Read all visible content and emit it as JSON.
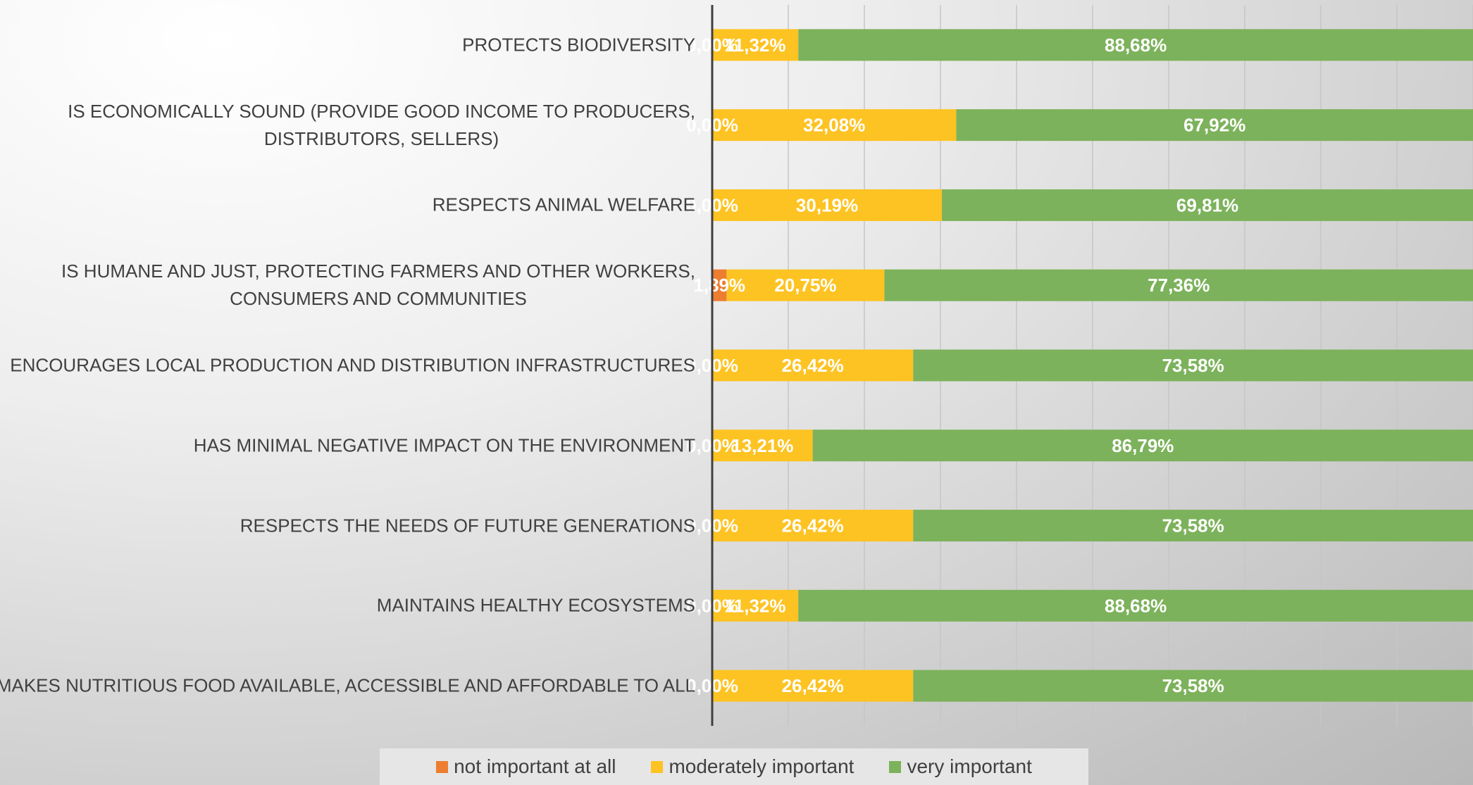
{
  "chart_data": {
    "type": "stacked_bar_horizontal",
    "categories": [
      "PROTECTS BIODIVERSITY",
      "IS ECONOMICALLY SOUND (PROVIDE GOOD INCOME TO PRODUCERS, DISTRIBUTORS, SELLERS)",
      "RESPECTS ANIMAL WELFARE",
      "IS HUMANE AND JUST, PROTECTING FARMERS AND OTHER WORKERS, CONSUMERS AND COMMUNITIES",
      "ENCOURAGES LOCAL PRODUCTION AND DISTRIBUTION INFRASTRUCTURES",
      "HAS MINIMAL NEGATIVE IMPACT ON THE ENVIRONMENT",
      "RESPECTS THE NEEDS OF FUTURE GENERATIONS",
      "MAINTAINS HEALTHY ECOSYSTEMS",
      "MAKES NUTRITIOUS FOOD AVAILABLE, ACCESSIBLE AND AFFORDABLE TO ALL"
    ],
    "series": [
      {
        "name": "not important at all",
        "color": "#ed7d31",
        "values": [
          0,
          0,
          0,
          1.89,
          0,
          0,
          0,
          0,
          0
        ],
        "value_labels": [
          "0,00%",
          "0,00%",
          "0,00%",
          "1,89%",
          "0,00%",
          "0,00%",
          "0,00%",
          "0,00%",
          "0,00%"
        ]
      },
      {
        "name": "moderately important",
        "color": "#fdc322",
        "values": [
          11.32,
          32.08,
          30.19,
          20.75,
          26.42,
          13.21,
          26.42,
          11.32,
          26.42
        ],
        "value_labels": [
          "11,32%",
          "32,08%",
          "30,19%",
          "20,75%",
          "26,42%",
          "13,21%",
          "26,42%",
          "11,32%",
          "26,42%"
        ]
      },
      {
        "name": "very important",
        "color": "#7cb25b",
        "values": [
          88.68,
          67.92,
          69.81,
          77.36,
          73.58,
          86.79,
          73.58,
          88.68,
          73.58
        ],
        "value_labels": [
          "88,68%",
          "67,92%",
          "69,81%",
          "77,36%",
          "73,58%",
          "86,79%",
          "73,58%",
          "88,68%",
          "73,58%"
        ]
      }
    ],
    "xlim": [
      0,
      100
    ],
    "xticks": [
      0,
      10,
      20,
      30,
      40,
      50,
      60,
      70,
      80,
      90,
      100
    ],
    "grid": true,
    "legend": "bottom"
  }
}
